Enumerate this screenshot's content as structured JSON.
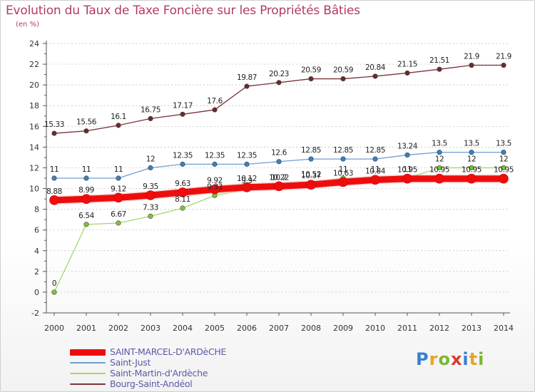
{
  "colors": {
    "title": "#b23a67",
    "axis_text": "#333333",
    "grid": "#bcbcbc",
    "legend_text": "#5a5aa8"
  },
  "brand": {
    "letters": [
      {
        "char": "P",
        "color": "#3a7fd0"
      },
      {
        "char": "r",
        "color": "#e9a227"
      },
      {
        "char": "o",
        "color": "#7ab830"
      },
      {
        "char": "x",
        "color": "#d83c2c"
      },
      {
        "char": "i",
        "color": "#3a7fd0"
      },
      {
        "char": "t",
        "color": "#e9a227"
      },
      {
        "char": "i",
        "color": "#7ab830"
      }
    ]
  },
  "chart_data": {
    "type": "line",
    "title": "Evolution du Taux de Taxe Foncière sur les Propriétés Bâties",
    "subtitle": "(en %)",
    "xlabel": "",
    "ylabel": "",
    "ylim": [
      -2,
      24
    ],
    "yticks": [
      -2,
      0,
      2,
      4,
      6,
      8,
      10,
      12,
      14,
      16,
      18,
      20,
      22,
      24
    ],
    "grid": true,
    "legend_position": "bottom-left",
    "categories": [
      "2000",
      "2001",
      "2002",
      "2003",
      "2004",
      "2005",
      "2006",
      "2007",
      "2008",
      "2009",
      "2010",
      "2011",
      "2012",
      "2013",
      "2014"
    ],
    "series": [
      {
        "name": "SAINT-MARCEL-D'ARDèCHE",
        "color": "#ee0d0d",
        "marker": "#ee0d0d",
        "width": 9,
        "values": [
          8.88,
          8.99,
          9.12,
          9.35,
          9.63,
          9.92,
          10.12,
          10.22,
          10.37,
          10.63,
          10.84,
          10.95,
          10.95,
          10.95,
          10.95
        ],
        "labels": [
          "8.88",
          "8.99",
          "9.12",
          "9.35",
          "9.63",
          "9.92",
          "10.12",
          "10.22",
          "10.37",
          "10.63",
          "10.84",
          "10.95",
          "10.95",
          "10.95",
          "10.95"
        ]
      },
      {
        "name": "Saint-Just",
        "color": "#6f9fd0",
        "marker": "#3a7fc0",
        "width": 1.3,
        "values": [
          11,
          11,
          11,
          12,
          12.35,
          12.35,
          12.35,
          12.6,
          12.85,
          12.85,
          12.85,
          13.24,
          13.5,
          13.5,
          13.5
        ],
        "labels": [
          "11",
          "11",
          "11",
          "12",
          "12.35",
          "12.35",
          "12.35",
          "12.6",
          "12.85",
          "12.85",
          "12.85",
          "13.24",
          "13.5",
          "13.5",
          "13.5"
        ]
      },
      {
        "name": "Saint-Martin-d'Ardèche",
        "color": "#a6d86a",
        "marker": "#7fc23a",
        "width": 1.3,
        "values": [
          0,
          6.54,
          6.67,
          7.33,
          8.11,
          9.33,
          9.9,
          10.2,
          10.52,
          11,
          11,
          11,
          12,
          12,
          12
        ],
        "labels": [
          "0",
          "6.54",
          "6.67",
          "7.33",
          "8.11",
          "9.33",
          "9.9",
          "10.2",
          "10.52",
          "11",
          "11",
          "11",
          "12",
          "12",
          "12"
        ]
      },
      {
        "name": "Bourg-Saint-Andéol",
        "color": "#7a3438",
        "marker": "#6a2a2e",
        "width": 1.3,
        "values": [
          15.33,
          15.56,
          16.1,
          16.75,
          17.17,
          17.6,
          19.87,
          20.23,
          20.59,
          20.59,
          20.84,
          21.15,
          21.51,
          21.9,
          21.9
        ],
        "labels": [
          "15.33",
          "15.56",
          "16.1",
          "16.75",
          "17.17",
          "17.6",
          "19.87",
          "20.23",
          "20.59",
          "20.59",
          "20.84",
          "21.15",
          "21.51",
          "21.9",
          "21.9"
        ]
      }
    ]
  }
}
